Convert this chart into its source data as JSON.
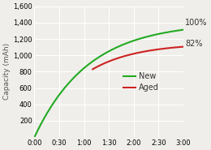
{
  "title": "",
  "ylabel": "Capacity (mAh)",
  "xlabel": "",
  "xlim_minutes": [
    0,
    180
  ],
  "ylim": [
    0,
    1600
  ],
  "yticks": [
    200,
    400,
    600,
    800,
    1000,
    1200,
    1400,
    1600
  ],
  "xticks_minutes": [
    0,
    30,
    60,
    90,
    120,
    150,
    180
  ],
  "xtick_labels": [
    "0:00",
    "0:30",
    "1:00",
    "1:30",
    "2:00",
    "2:30",
    "3:00"
  ],
  "new_color": "#22aa22",
  "aged_color": "#cc2222",
  "new_label": "New",
  "aged_label": "Aged",
  "new_end_pct": "100%",
  "aged_end_pct": "82%",
  "new_max_capacity": 1400,
  "aged_max_capacity": 1148,
  "background_color": "#f0eeea",
  "grid_color": "#ffffff",
  "legend_fontsize": 7,
  "tick_fontsize": 6,
  "label_fontsize": 6.5
}
